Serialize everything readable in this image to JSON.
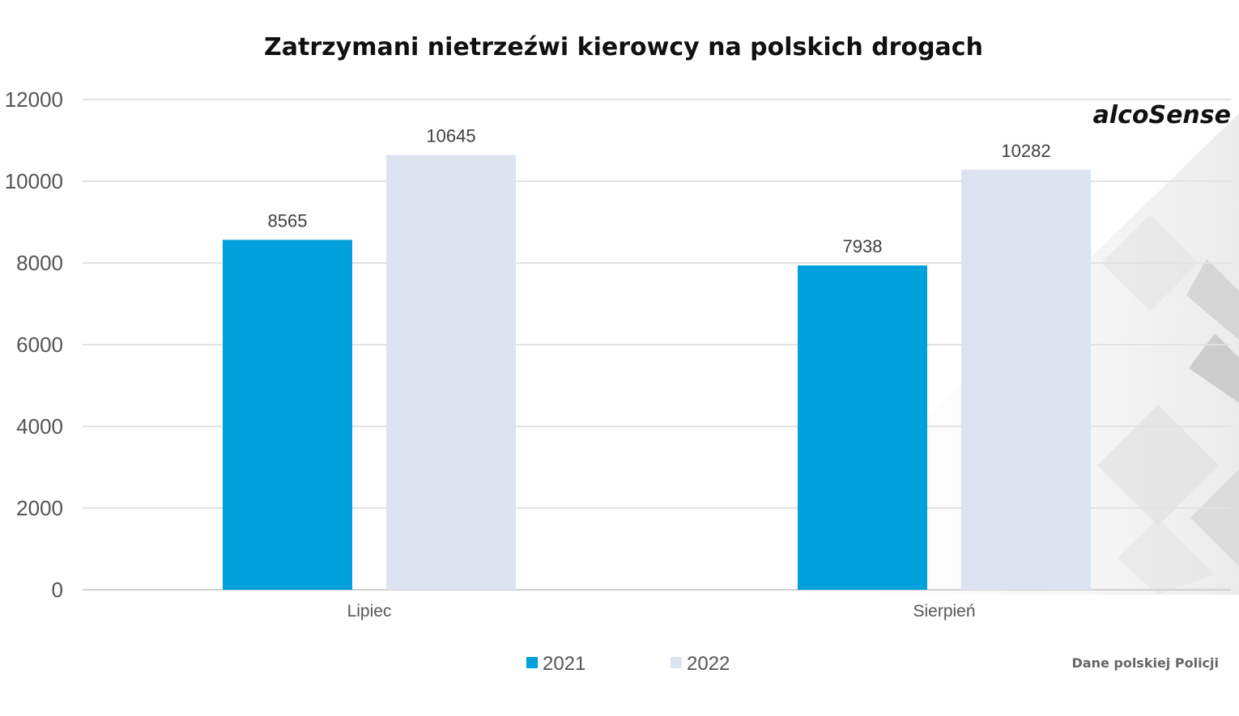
{
  "chart_data": {
    "type": "bar",
    "title": "Zatrzymani nietrzeźwi kierowcy na polskich drogach",
    "categories": [
      "Lipiec",
      "Sierpień"
    ],
    "series": [
      {
        "name": "2021",
        "values": [
          8565,
          7938
        ],
        "color": "#00A0DC"
      },
      {
        "name": "2022",
        "values": [
          10645,
          10282
        ],
        "color": "#DCE4F2"
      }
    ],
    "y_ticks": [
      "0",
      "2000",
      "4000",
      "6000",
      "8000",
      "10000",
      "12000"
    ],
    "ylim": [
      0,
      12000
    ],
    "grid": true,
    "legend_position": "bottom",
    "data_labels": true
  },
  "brand": {
    "logo_text": "alcoSense"
  },
  "source_note": "Dane polskiej Policji",
  "colors": {
    "gridline": "#e2e2e2",
    "axis": "#d0d0d0"
  }
}
